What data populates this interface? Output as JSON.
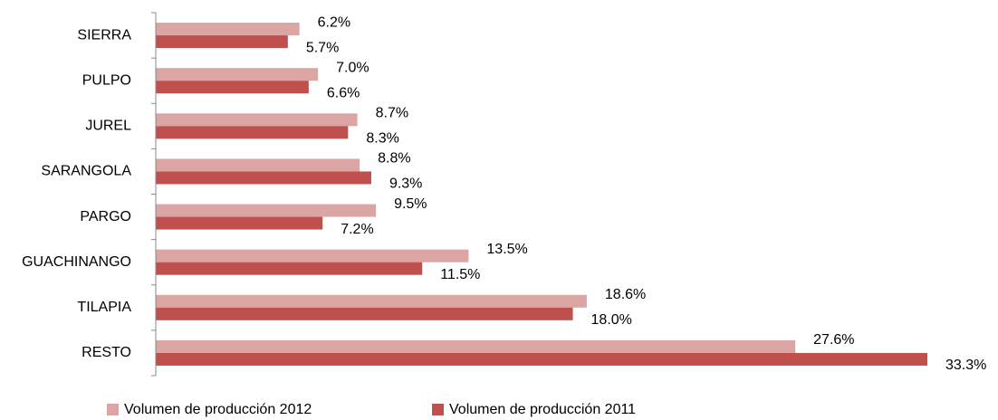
{
  "chart_data": {
    "type": "hbar",
    "categories": [
      "SIERRA",
      "PULPO",
      "JUREL",
      "SARANGOLA",
      "PARGO",
      "GUACHINANGO",
      "TILAPIA",
      "RESTO"
    ],
    "series": [
      {
        "name": "Volumen de producción 2012",
        "color": "#dba5a4",
        "values": [
          6.2,
          7.0,
          8.7,
          8.8,
          9.5,
          13.5,
          18.6,
          27.6
        ],
        "value_labels": [
          "6.2%",
          "7.0%",
          "8.7%",
          "8.8%",
          "9.5%",
          "13.5%",
          "18.6%",
          "27.6%"
        ]
      },
      {
        "name": "Volumen de producción 2011",
        "color": "#c0504d",
        "values": [
          5.7,
          6.6,
          8.3,
          9.3,
          7.2,
          11.5,
          18.0,
          33.3
        ],
        "value_labels": [
          "5.7%",
          "6.6%",
          "8.3%",
          "9.3%",
          "7.2%",
          "11.5%",
          "18.0%",
          "33.3%"
        ]
      }
    ],
    "legend": "bottom"
  }
}
